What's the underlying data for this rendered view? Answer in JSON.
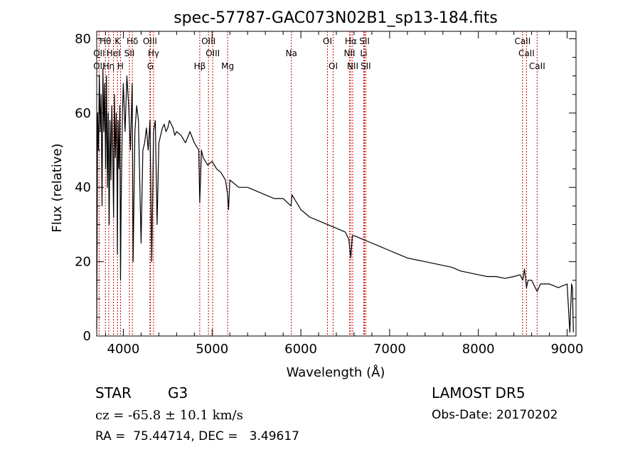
{
  "chart_data": {
    "type": "line",
    "title": "spec-57787-GAC073N02B1_sp13-184.fits",
    "xlabel": "Wavelength (Å)",
    "ylabel": "Flux (relative)",
    "xlim": [
      3700,
      9100
    ],
    "ylim": [
      0,
      82
    ],
    "x_ticks": [
      4000,
      5000,
      6000,
      7000,
      8000,
      9000
    ],
    "y_ticks": [
      0,
      20,
      40,
      60,
      80
    ],
    "grid": false,
    "series": [
      {
        "x": [
          3700,
          3705,
          3710,
          3720,
          3730,
          3740,
          3750,
          3760,
          3770,
          3780,
          3790,
          3800,
          3810,
          3820,
          3830,
          3840,
          3850,
          3860,
          3870,
          3880,
          3890,
          3900,
          3910,
          3920,
          3930,
          3933,
          3940,
          3950,
          3960,
          3968,
          3975,
          3990,
          4000,
          4020,
          4040,
          4060,
          4080,
          4100,
          4110,
          4130,
          4150,
          4170,
          4200,
          4220,
          4240,
          4260,
          4280,
          4300,
          4320,
          4340,
          4360,
          4380,
          4400,
          4420,
          4440,
          4460,
          4480,
          4500,
          4520,
          4540,
          4560,
          4580,
          4600,
          4650,
          4700,
          4750,
          4800,
          4850,
          4861,
          4880,
          4900,
          4950,
          5000,
          5050,
          5100,
          5150,
          5175,
          5185,
          5200,
          5250,
          5300,
          5400,
          5500,
          5600,
          5700,
          5800,
          5890,
          5900,
          6000,
          6100,
          6200,
          6300,
          6400,
          6500,
          6540,
          6563,
          6580,
          6600,
          6700,
          6800,
          6900,
          7000,
          7100,
          7200,
          7300,
          7400,
          7500,
          7600,
          7700,
          7800,
          7900,
          8000,
          8100,
          8200,
          8300,
          8400,
          8470,
          8500,
          8520,
          8542,
          8560,
          8600,
          8662,
          8700,
          8800,
          8900,
          9000,
          9030,
          9050,
          9060,
          9070
        ],
        "y": [
          2,
          27,
          60,
          50,
          70,
          55,
          65,
          35,
          72,
          55,
          68,
          45,
          70,
          40,
          60,
          30,
          58,
          42,
          62,
          50,
          32,
          65,
          48,
          60,
          40,
          22,
          58,
          45,
          62,
          15,
          35,
          60,
          68,
          55,
          70,
          62,
          50,
          68,
          20,
          55,
          62,
          58,
          25,
          50,
          52,
          56,
          50,
          58,
          20,
          55,
          58,
          30,
          52,
          54,
          56,
          57,
          55,
          56,
          58,
          57,
          56,
          54,
          55,
          54,
          52,
          55,
          52,
          50,
          36,
          50,
          48,
          46,
          47,
          45,
          44,
          42,
          38,
          34,
          42,
          41,
          40,
          40,
          39,
          38,
          37,
          37,
          35,
          38,
          34,
          32,
          31,
          30,
          29,
          28,
          26,
          21,
          27,
          27,
          26,
          25,
          24,
          23,
          22,
          21,
          20.5,
          20,
          19.5,
          19,
          18.5,
          17.5,
          17,
          16.5,
          16,
          16,
          15.5,
          16,
          16.5,
          15,
          18,
          13,
          15,
          15,
          12,
          14,
          14,
          13,
          14,
          1,
          14,
          13,
          1
        ]
      }
    ],
    "annotations": {
      "lines": [
        {
          "label": "OII",
          "x": 3727,
          "row": 2
        },
        {
          "label": "OII",
          "x": 3727,
          "row": 3
        },
        {
          "label": "Hθ",
          "x": 3798,
          "row": 1
        },
        {
          "label": "Hη",
          "x": 3835,
          "row": 3
        },
        {
          "label": "HeI",
          "x": 3889,
          "row": 2
        },
        {
          "label": "K",
          "x": 3934,
          "row": 1
        },
        {
          "label": "H",
          "x": 3968,
          "row": 3
        },
        {
          "label": "SII",
          "x": 4068,
          "row": 2
        },
        {
          "label": "Hδ",
          "x": 4102,
          "row": 1
        },
        {
          "label": "OIII",
          "x": 4300,
          "row": 1
        },
        {
          "label": "Hγ",
          "x": 4340,
          "row": 2
        },
        {
          "label": "G",
          "x": 4305,
          "row": 3
        },
        {
          "label": "Hβ",
          "x": 4861,
          "row": 3
        },
        {
          "label": "OIII",
          "x": 4959,
          "row": 1
        },
        {
          "label": "OIII",
          "x": 5007,
          "row": 2
        },
        {
          "label": "Mg",
          "x": 5175,
          "row": 3
        },
        {
          "label": "Na",
          "x": 5893,
          "row": 2
        },
        {
          "label": "OI",
          "x": 6300,
          "row": 1
        },
        {
          "label": "OI",
          "x": 6364,
          "row": 3
        },
        {
          "label": "Hα",
          "x": 6563,
          "row": 1
        },
        {
          "label": "NII",
          "x": 6548,
          "row": 2
        },
        {
          "label": "NII",
          "x": 6584,
          "row": 3
        },
        {
          "label": "SII",
          "x": 6717,
          "row": 1
        },
        {
          "label": "Li",
          "x": 6708,
          "row": 2
        },
        {
          "label": "SII",
          "x": 6731,
          "row": 3
        },
        {
          "label": "CaII",
          "x": 8498,
          "row": 1
        },
        {
          "label": "CaII",
          "x": 8542,
          "row": 2
        },
        {
          "label": "CaII",
          "x": 8662,
          "row": 3
        }
      ]
    }
  },
  "footer": {
    "class_label": "STAR",
    "subclass": "G3",
    "survey": "LAMOST DR5",
    "cz": "cz = -65.8 ± 10.1 km/s",
    "obs_date": "Obs-Date: 20170202",
    "radec": "RA =  75.44714, DEC =   3.49617"
  }
}
